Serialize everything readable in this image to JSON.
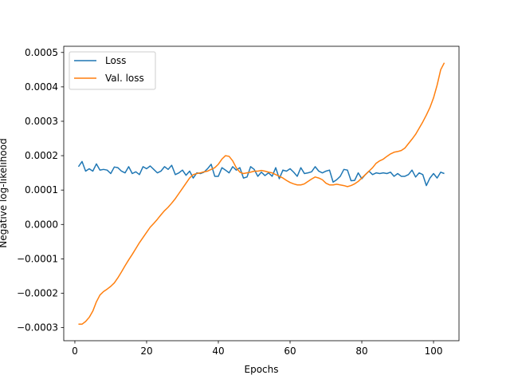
{
  "chart_data": {
    "type": "line",
    "title": "",
    "xlabel": "Epochs",
    "ylabel": "Negative log-likelihood",
    "xlim": [
      -3.1,
      107.1
    ],
    "ylim": [
      -0.000338,
      0.000518
    ],
    "xticks": [
      0,
      20,
      40,
      60,
      80,
      100
    ],
    "xtick_labels": [
      "0",
      "20",
      "40",
      "60",
      "80",
      "100"
    ],
    "yticks": [
      -0.0003,
      -0.0002,
      -0.0001,
      0.0,
      0.0001,
      0.0002,
      0.0003,
      0.0004,
      0.0005
    ],
    "ytick_labels": [
      "−0.0003",
      "−0.0002",
      "−0.0001",
      "0.0000",
      "0.0001",
      "0.0002",
      "0.0003",
      "0.0004",
      "0.0005"
    ],
    "grid": false,
    "legend_position": "top-left",
    "series": [
      {
        "name": "Loss",
        "color": "#1f77b4",
        "x": [
          1,
          2,
          3,
          4,
          5,
          6,
          7,
          8,
          9,
          10,
          11,
          12,
          13,
          14,
          15,
          16,
          17,
          18,
          19,
          20,
          21,
          22,
          23,
          24,
          25,
          26,
          27,
          28,
          29,
          30,
          31,
          32,
          33,
          34,
          35,
          36,
          37,
          38,
          39,
          40,
          41,
          42,
          43,
          44,
          45,
          46,
          47,
          48,
          49,
          50,
          51,
          52,
          53,
          54,
          55,
          56,
          57,
          58,
          59,
          60,
          61,
          62,
          63,
          64,
          65,
          66,
          67,
          68,
          69,
          70,
          71,
          72,
          73,
          74,
          75,
          76,
          77,
          78,
          79,
          80,
          81,
          82,
          83,
          84,
          85,
          86,
          87,
          88,
          89,
          90,
          91,
          92,
          93,
          94,
          95,
          96,
          97,
          98,
          99,
          100,
          101,
          102,
          103
        ],
        "y": [
          0.000168,
          0.000183,
          0.000155,
          0.000162,
          0.000155,
          0.000176,
          0.000158,
          0.00016,
          0.000158,
          0.000148,
          0.000167,
          0.000165,
          0.000155,
          0.00015,
          0.000168,
          0.000148,
          0.000153,
          0.000145,
          0.000168,
          0.000162,
          0.00017,
          0.00016,
          0.00015,
          0.000155,
          0.000168,
          0.00016,
          0.000172,
          0.000145,
          0.00015,
          0.000158,
          0.000143,
          0.000155,
          0.000135,
          0.00015,
          0.000148,
          0.000152,
          0.000162,
          0.000175,
          0.00014,
          0.00014,
          0.000165,
          0.000158,
          0.00015,
          0.000168,
          0.000158,
          0.000165,
          0.000135,
          0.000138,
          0.000168,
          0.00016,
          0.00014,
          0.000152,
          0.000142,
          0.00015,
          0.00014,
          0.000165,
          0.000133,
          0.000158,
          0.000155,
          0.000162,
          0.000152,
          0.00014,
          0.000165,
          0.000148,
          0.00015,
          0.000153,
          0.000168,
          0.000155,
          0.00015,
          0.000155,
          0.000158,
          0.000123,
          0.00013,
          0.00014,
          0.00016,
          0.000158,
          0.000127,
          0.000128,
          0.00015,
          0.000133,
          0.000145,
          0.000155,
          0.000145,
          0.00015,
          0.000148,
          0.00015,
          0.000148,
          0.000152,
          0.00014,
          0.000148,
          0.00014,
          0.00014,
          0.000145,
          0.000158,
          0.000138,
          0.00015,
          0.000145,
          0.000113,
          0.000135,
          0.000148,
          0.000135,
          0.000152,
          0.000148
        ]
      },
      {
        "name": "Val. loss",
        "color": "#ff7f0e",
        "x": [
          1,
          2,
          3,
          4,
          5,
          6,
          7,
          8,
          9,
          10,
          11,
          12,
          13,
          14,
          15,
          16,
          17,
          18,
          19,
          20,
          21,
          22,
          23,
          24,
          25,
          26,
          27,
          28,
          29,
          30,
          31,
          32,
          33,
          34,
          35,
          36,
          37,
          38,
          39,
          40,
          41,
          42,
          43,
          44,
          45,
          46,
          47,
          48,
          49,
          50,
          51,
          52,
          53,
          54,
          55,
          56,
          57,
          58,
          59,
          60,
          61,
          62,
          63,
          64,
          65,
          66,
          67,
          68,
          69,
          70,
          71,
          72,
          73,
          74,
          75,
          76,
          77,
          78,
          79,
          80,
          81,
          82,
          83,
          84,
          85,
          86,
          87,
          88,
          89,
          90,
          91,
          92,
          93,
          94,
          95,
          96,
          97,
          98,
          99,
          100,
          101,
          102,
          103
        ],
        "y": [
          -0.00029,
          -0.00029,
          -0.000282,
          -0.00027,
          -0.000252,
          -0.000225,
          -0.000205,
          -0.000195,
          -0.000188,
          -0.00018,
          -0.00017,
          -0.000155,
          -0.000138,
          -0.00012,
          -0.000103,
          -8.7e-05,
          -7e-05,
          -5.3e-05,
          -3.8e-05,
          -2.3e-05,
          -8e-06,
          3e-06,
          1.5e-05,
          2.8e-05,
          4e-05,
          5e-05,
          6.2e-05,
          7.5e-05,
          9e-05,
          0.000105,
          0.00012,
          0.000135,
          0.000145,
          0.000148,
          0.00015,
          0.000153,
          0.000155,
          0.00016,
          0.000165,
          0.000175,
          0.00019,
          0.0002,
          0.000198,
          0.000185,
          0.000165,
          0.000152,
          0.000148,
          0.00015,
          0.000152,
          0.000155,
          0.000155,
          0.000157,
          0.000155,
          0.000152,
          0.00015,
          0.000145,
          0.00014,
          0.000135,
          0.000128,
          0.000122,
          0.000118,
          0.000115,
          0.000115,
          0.000118,
          0.000125,
          0.000132,
          0.000138,
          0.000135,
          0.00013,
          0.00012,
          0.000115,
          0.000115,
          0.000117,
          0.000115,
          0.000113,
          0.00011,
          0.000113,
          0.000118,
          0.000125,
          0.000135,
          0.000145,
          0.000155,
          0.000165,
          0.000178,
          0.000185,
          0.00019,
          0.000198,
          0.000205,
          0.00021,
          0.000212,
          0.000215,
          0.000222,
          0.000235,
          0.000248,
          0.000262,
          0.00028,
          0.000298,
          0.000318,
          0.00034,
          0.000368,
          0.000405,
          0.00045,
          0.00047
        ]
      }
    ]
  }
}
